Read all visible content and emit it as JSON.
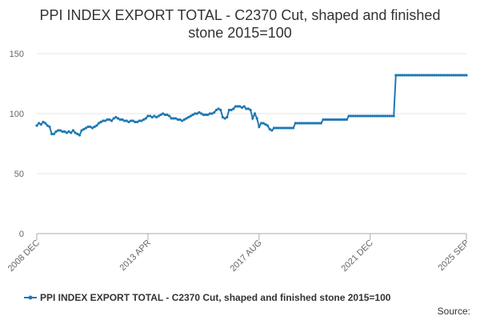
{
  "chart_data": {
    "type": "line",
    "title": "PPI INDEX EXPORT TOTAL - C2370 Cut, shaped and finished stone 2015=100",
    "source": "Source:",
    "categories": [
      "2008 DEC",
      null,
      null,
      null,
      null,
      null,
      null,
      null,
      null,
      null,
      null,
      null,
      null,
      null,
      null,
      null,
      null,
      null,
      null,
      null,
      null,
      null,
      null,
      null,
      null,
      null,
      null,
      null,
      null,
      null,
      null,
      null,
      null,
      null,
      null,
      null,
      null,
      null,
      null,
      null,
      null,
      null,
      null,
      null,
      null,
      null,
      null,
      null,
      null,
      null,
      null,
      null,
      "2013 APR",
      null,
      null,
      null,
      null,
      null,
      null,
      null,
      null,
      null,
      null,
      null,
      null,
      null,
      null,
      null,
      null,
      null,
      null,
      null,
      null,
      null,
      null,
      null,
      null,
      null,
      null,
      null,
      null,
      null,
      null,
      null,
      null,
      null,
      null,
      null,
      null,
      null,
      null,
      null,
      null,
      null,
      null,
      null,
      null,
      null,
      null,
      null,
      null,
      null,
      null,
      null,
      "2017 AUG",
      null,
      null,
      null,
      null,
      null,
      null,
      null,
      null,
      null,
      null,
      null,
      null,
      null,
      null,
      null,
      null,
      null,
      null,
      null,
      null,
      null,
      null,
      null,
      null,
      null,
      null,
      null,
      null,
      null,
      null,
      null,
      null,
      null,
      null,
      null,
      null,
      null,
      null,
      null,
      null,
      null,
      null,
      null,
      null,
      null,
      null,
      null,
      null,
      null,
      null,
      null,
      "2021 DEC",
      null,
      null,
      null,
      null,
      null,
      null,
      null,
      null,
      null,
      null,
      null,
      null,
      null,
      null,
      null,
      null,
      null,
      null,
      null,
      null,
      null,
      null,
      null,
      null,
      null,
      null,
      null,
      null,
      null,
      null,
      null,
      null,
      null,
      null,
      null,
      null,
      null,
      null,
      null,
      null,
      null,
      null,
      null,
      null,
      "2025 SEP"
    ],
    "series": [
      {
        "name": "PPI INDEX EXPORT TOTAL - C2370 Cut, shaped and finished stone 2015=100",
        "color": "#1f78b4",
        "values": [
          90,
          92,
          91,
          93,
          92,
          90,
          89,
          83,
          83,
          85,
          86,
          86,
          85,
          85,
          84,
          85,
          84,
          86,
          84,
          83,
          82,
          86,
          87,
          88,
          89,
          89,
          88,
          89,
          90,
          92,
          93,
          94,
          94,
          95,
          95,
          94,
          96,
          97,
          96,
          95,
          95,
          94,
          94,
          93,
          94,
          94,
          93,
          93,
          94,
          94,
          95,
          96,
          98,
          98,
          97,
          98,
          97,
          98,
          99,
          100,
          99,
          99,
          98,
          96,
          96,
          96,
          95,
          95,
          94,
          95,
          96,
          97,
          98,
          99,
          100,
          100,
          101,
          100,
          99,
          99,
          99,
          100,
          100,
          101,
          103,
          104,
          103,
          97,
          96,
          97,
          103,
          103,
          104,
          106,
          106,
          106,
          105,
          106,
          104,
          104,
          103,
          96,
          100,
          96,
          89,
          92,
          92,
          91,
          90,
          87,
          86,
          88,
          88,
          88,
          88,
          88,
          88,
          88,
          88,
          88,
          88,
          92,
          92,
          92,
          92,
          92,
          92,
          92,
          92,
          92,
          92,
          92,
          92,
          92,
          95,
          95,
          95,
          95,
          95,
          95,
          95,
          95,
          95,
          95,
          95,
          95,
          98,
          98,
          98,
          98,
          98,
          98,
          98,
          98,
          98,
          98,
          98,
          98,
          98,
          98,
          98,
          98,
          98,
          98,
          98,
          98,
          98,
          98,
          132,
          132,
          132,
          132,
          132,
          132,
          132,
          132,
          132,
          132,
          132,
          132,
          132,
          132,
          132,
          132,
          132,
          132,
          132,
          132,
          132,
          132,
          132,
          132,
          132,
          132,
          132,
          132,
          132,
          132,
          132,
          132,
          132,
          132
        ]
      }
    ],
    "ylim": [
      0,
      150
    ],
    "yticks": [
      0,
      50,
      100,
      150
    ],
    "grid": true
  }
}
